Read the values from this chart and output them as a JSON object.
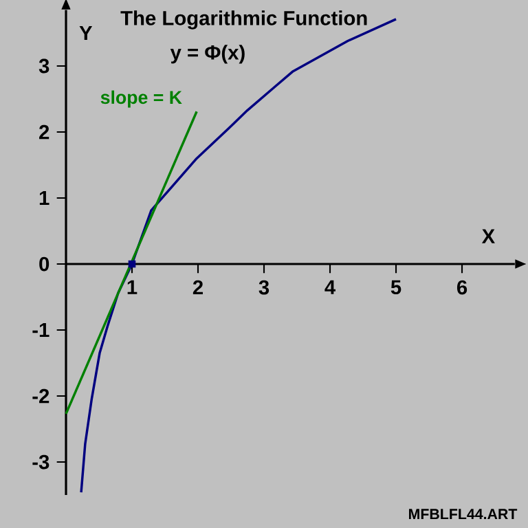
{
  "chart_data": {
    "type": "line",
    "title": "The Logarithmic Function",
    "subtitle": "y = Φ(x)",
    "xlabel": "X",
    "ylabel": "Y",
    "xlim": [
      0,
      6.8
    ],
    "ylim": [
      -3.5,
      3.85
    ],
    "xticks": [
      1,
      2,
      3,
      4,
      5,
      6
    ],
    "yticks": [
      -3,
      -2,
      -1,
      0,
      1,
      2,
      3
    ],
    "marker": "none",
    "annotations": [
      "slope = K",
      "MFBLFL44.ART"
    ],
    "series": [
      {
        "color": "#000080",
        "x": [
          0.23,
          0.29,
          0.39,
          0.51,
          0.63,
          0.79,
          1.0,
          1.29,
          1.98,
          2.47,
          2.75,
          3.17,
          3.44,
          4.27,
          5.0
        ],
        "values": [
          -3.46,
          -2.73,
          -2.04,
          -1.35,
          -0.94,
          -0.44,
          0,
          0.81,
          1.6,
          2.06,
          2.33,
          2.69,
          2.92,
          3.38,
          3.71
        ]
      },
      {
        "color": "#008000",
        "x": [
          0,
          1.98
        ],
        "values": [
          -2.27,
          2.31
        ]
      },
      {
        "type": "scatter",
        "color": "#000080",
        "marker": "square",
        "x": [
          1
        ],
        "values": [
          0
        ]
      }
    ]
  }
}
